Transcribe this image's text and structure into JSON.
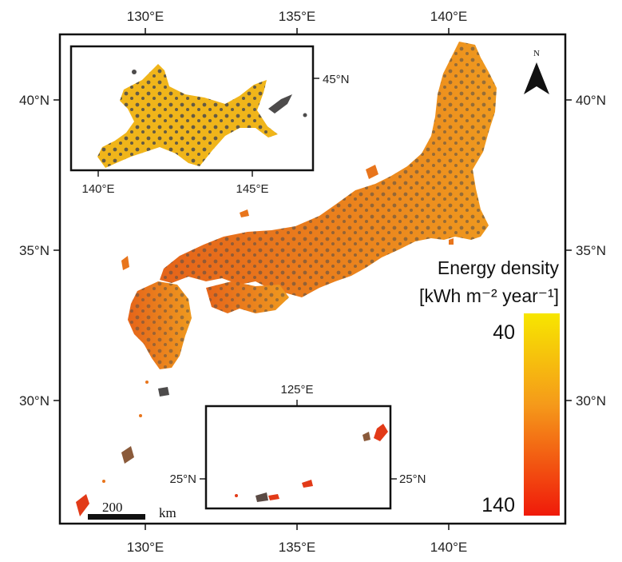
{
  "axes": {
    "top_lon": [
      "130°E",
      "135°E",
      "140°E"
    ],
    "bottom_lon": [
      "130°E",
      "135°E",
      "140°E"
    ],
    "left_lat": [
      "40°N",
      "35°N",
      "30°N"
    ],
    "right_lat": [
      "40°N",
      "35°N",
      "30°N"
    ]
  },
  "inset_hokkaido": {
    "lon_ticks": [
      "140°E",
      "145°E"
    ],
    "lat_ticks": [
      "45°N"
    ]
  },
  "inset_okinawa": {
    "lon_ticks": [
      "125°E"
    ],
    "lat_ticks_left": [
      "25°N"
    ],
    "lat_ticks_right": [
      "25°N"
    ]
  },
  "north_arrow": {
    "label": "N",
    "icon": "north-arrow-icon"
  },
  "scale_bar": {
    "value": "200",
    "unit": "km"
  },
  "legend": {
    "title_line1": "Energy density",
    "title_line2": "[kWh m⁻² year⁻¹]",
    "max_label": "40",
    "min_label": "140",
    "color_top": "#f7e600",
    "color_mid": "#f59a1a",
    "color_bottom": "#f01a0a"
  },
  "colors": {
    "land_orange": "#e8751c",
    "land_yellow": "#f0b51a",
    "forest_gray": "#4d4b4b",
    "frame": "#111111"
  }
}
